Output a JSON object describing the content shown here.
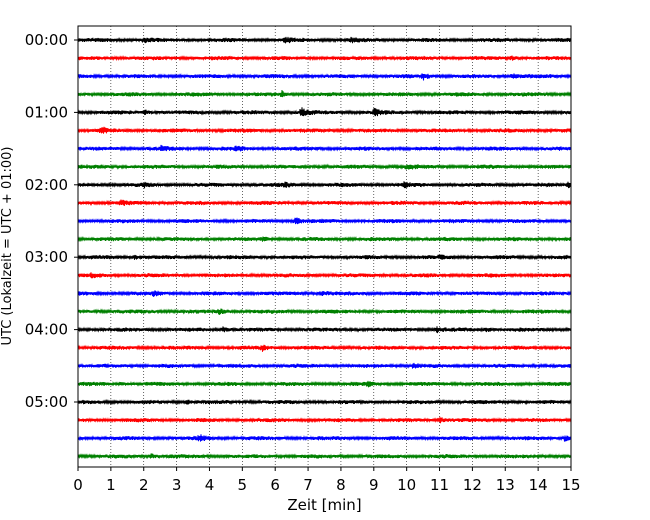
{
  "chart_data": {
    "type": "line",
    "title": "",
    "xlabel": "Zeit  [min]",
    "ylabel": "UTC (Lokalzeit = UTC + 01:00)",
    "xlim": [
      0,
      15
    ],
    "x_ticks": [
      "0",
      "1",
      "2",
      "3",
      "4",
      "5",
      "6",
      "7",
      "8",
      "9",
      "10",
      "11",
      "12",
      "13",
      "14",
      "15"
    ],
    "y_tick_labels": [
      "00:00",
      "01:00",
      "02:00",
      "03:00",
      "04:00",
      "05:00"
    ],
    "rows_per_hour": 4,
    "row_count": 24,
    "row_interval_minutes": 15,
    "grid_x": true,
    "grid_style": "dotted",
    "colors": [
      "#000000",
      "#ff0000",
      "#0000ff",
      "#008000"
    ],
    "events": [
      {
        "row": 0,
        "minute": 2.0,
        "amp": 1.6
      },
      {
        "row": 0,
        "minute": 6.3,
        "amp": 1.8
      },
      {
        "row": 0,
        "minute": 8.3,
        "amp": 1.4
      },
      {
        "row": 1,
        "minute": 13.2,
        "amp": 1.3
      },
      {
        "row": 2,
        "minute": 10.5,
        "amp": 2.2
      },
      {
        "row": 2,
        "minute": 13.2,
        "amp": 2.0
      },
      {
        "row": 3,
        "minute": 6.2,
        "amp": 2.0
      },
      {
        "row": 4,
        "minute": 2.0,
        "amp": 1.6
      },
      {
        "row": 4,
        "minute": 6.8,
        "amp": 3.0
      },
      {
        "row": 4,
        "minute": 9.0,
        "amp": 2.6
      },
      {
        "row": 5,
        "minute": 0.7,
        "amp": 2.2
      },
      {
        "row": 6,
        "minute": 2.5,
        "amp": 1.4
      },
      {
        "row": 6,
        "minute": 4.8,
        "amp": 1.4
      },
      {
        "row": 7,
        "minute": 10.0,
        "amp": 1.5
      },
      {
        "row": 8,
        "minute": 2.0,
        "amp": 1.6
      },
      {
        "row": 8,
        "minute": 6.3,
        "amp": 1.4
      },
      {
        "row": 8,
        "minute": 9.9,
        "amp": 1.8
      },
      {
        "row": 8,
        "minute": 14.9,
        "amp": 2.2
      },
      {
        "row": 9,
        "minute": 1.3,
        "amp": 1.6
      },
      {
        "row": 10,
        "minute": 6.6,
        "amp": 2.8
      },
      {
        "row": 11,
        "minute": 5.6,
        "amp": 1.3
      },
      {
        "row": 12,
        "minute": 1.7,
        "amp": 1.5
      },
      {
        "row": 12,
        "minute": 11.0,
        "amp": 1.6
      },
      {
        "row": 13,
        "minute": 0.4,
        "amp": 1.2
      },
      {
        "row": 14,
        "minute": 2.3,
        "amp": 1.8
      },
      {
        "row": 14,
        "minute": 7.4,
        "amp": 1.5
      },
      {
        "row": 15,
        "minute": 4.3,
        "amp": 1.7
      },
      {
        "row": 16,
        "minute": 4.4,
        "amp": 1.6
      },
      {
        "row": 16,
        "minute": 10.9,
        "amp": 1.8
      },
      {
        "row": 16,
        "minute": 12.4,
        "amp": 1.6
      },
      {
        "row": 17,
        "minute": 5.6,
        "amp": 2.0
      },
      {
        "row": 18,
        "minute": 10.2,
        "amp": 2.2
      },
      {
        "row": 19,
        "minute": 1.3,
        "amp": 1.5
      },
      {
        "row": 19,
        "minute": 8.8,
        "amp": 1.5
      },
      {
        "row": 20,
        "minute": 3.3,
        "amp": 1.4
      },
      {
        "row": 21,
        "minute": 11.0,
        "amp": 2.2
      },
      {
        "row": 22,
        "minute": 3.7,
        "amp": 1.8
      },
      {
        "row": 22,
        "minute": 14.8,
        "amp": 1.8
      },
      {
        "row": 23,
        "minute": 2.2,
        "amp": 2.0
      }
    ]
  }
}
